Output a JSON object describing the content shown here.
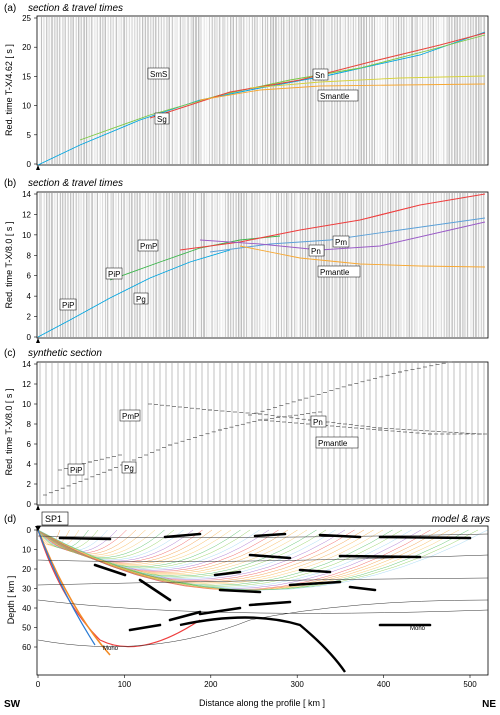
{
  "panels": {
    "a": {
      "letter": "(a)",
      "title": "section & travel times",
      "ylabel": "Red. time  T-X/4.62  [ s ]",
      "yticks": [
        "0",
        "5",
        "10",
        "15",
        "20",
        "25"
      ],
      "labels": {
        "sms": "SmS",
        "sn": "Sn",
        "sg": "Sg",
        "smantle": "Smantle"
      }
    },
    "b": {
      "letter": "(b)",
      "title": "section & travel times",
      "ylabel": "Red. time  T-X/8.0  [ s ]",
      "yticks": [
        "0",
        "2",
        "4",
        "6",
        "8",
        "10",
        "12",
        "14"
      ],
      "labels": {
        "pmp": "PmP",
        "pip": "PiP",
        "pg": "Pg",
        "pn": "Pn",
        "pm": "Pm",
        "pmantle": "Pmantle"
      }
    },
    "c": {
      "letter": "(c)",
      "title": "synthetic section",
      "ylabel": "Red. time  T-X/8.0  [ s ]",
      "yticks": [
        "0",
        "2",
        "4",
        "6",
        "8",
        "10",
        "12",
        "14"
      ],
      "labels": {
        "pmp": "PmP",
        "pip": "PiP",
        "pg": "Pg",
        "pn": "Pn",
        "pmantle": "Pmantle"
      }
    },
    "d": {
      "letter": "(d)",
      "title": "model & rays",
      "ylabel": "Depth  [ km ]",
      "yticks": [
        "0",
        "10",
        "20",
        "30",
        "40",
        "50",
        "60"
      ],
      "sp_label": "SP1",
      "moho_left": "Moho",
      "moho_right": "Moho"
    }
  },
  "x_axis": {
    "label": "Distance along the profile  [ km ]",
    "ticks": [
      "0",
      "100",
      "200",
      "300",
      "400",
      "500"
    ],
    "left_end": "SW",
    "right_end": "NE"
  },
  "colors": {
    "sg": "#00a5e0",
    "sms": "#7ac943",
    "sn": "#e8463c",
    "smantle": "#f7a833",
    "moho_rays": "#f28c28",
    "pmp_rays": "#3ab54a",
    "pn_rays": "#ee3e3e"
  }
}
